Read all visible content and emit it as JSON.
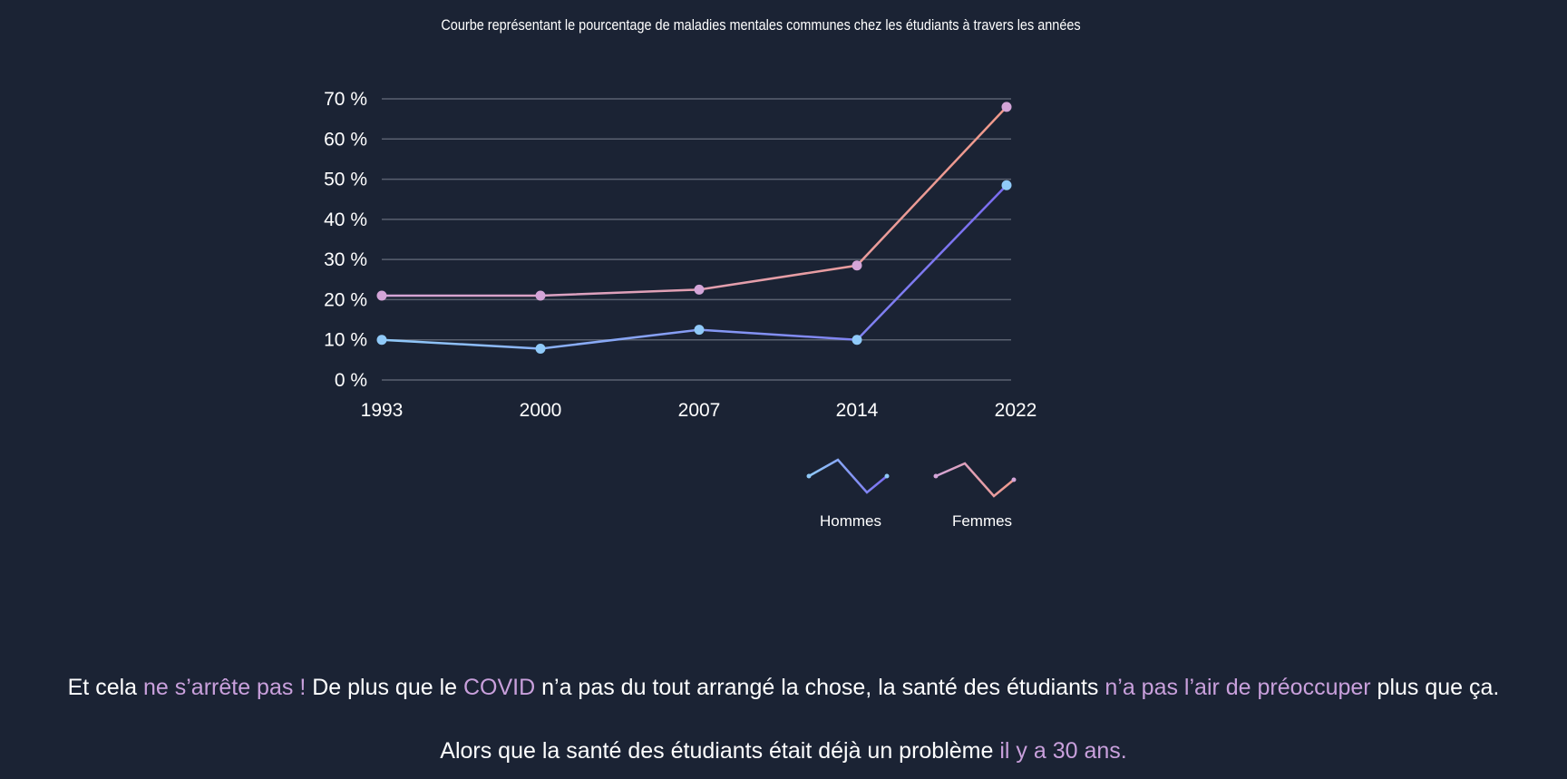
{
  "chart_data": {
    "type": "line",
    "title": "Courbe représentant le pourcentage de maladies mentales communes chez les étudiants à travers les années",
    "categories": [
      "1993",
      "2000",
      "2007",
      "2014",
      "2022"
    ],
    "y_ticks": [
      "0 %",
      "10 %",
      "20 %",
      "30 %",
      "40 %",
      "50 %",
      "60 %",
      "70 %"
    ],
    "ylim": [
      0,
      70
    ],
    "grid": true,
    "legend_placement": "bottom-right",
    "series": [
      {
        "name": "Hommes",
        "values": [
          10,
          7.8,
          12.5,
          10,
          48.5
        ],
        "colors": [
          "#90caf9",
          "#7b6cf0"
        ],
        "marker": "#90caf9"
      },
      {
        "name": "Femmes",
        "values": [
          21,
          21,
          22.5,
          28.5,
          68
        ],
        "colors": [
          "#d4a5d8",
          "#f0998a"
        ],
        "marker": "#d4a5d8"
      }
    ]
  },
  "text": {
    "p1": [
      {
        "t": "Et cela ",
        "hl": false
      },
      {
        "t": "ne s’arrête pas !",
        "hl": true
      },
      {
        "t": " De plus que le ",
        "hl": false
      },
      {
        "t": "COVID",
        "hl": true
      },
      {
        "t": " n’a pas du tout arrangé la chose, la santé des étudiants ",
        "hl": false
      },
      {
        "t": "n’a pas l’air de préoccuper",
        "hl": true
      },
      {
        "t": " plus que ça.",
        "hl": false
      }
    ],
    "p2": [
      {
        "t": "Alors que la santé des étudiants était déjà un problème ",
        "hl": false
      },
      {
        "t": "il y a 30 ans.",
        "hl": true
      }
    ]
  },
  "colors": {
    "background": "#1b2334",
    "highlight": "#c9a0dc",
    "grid": "#5a6170"
  }
}
